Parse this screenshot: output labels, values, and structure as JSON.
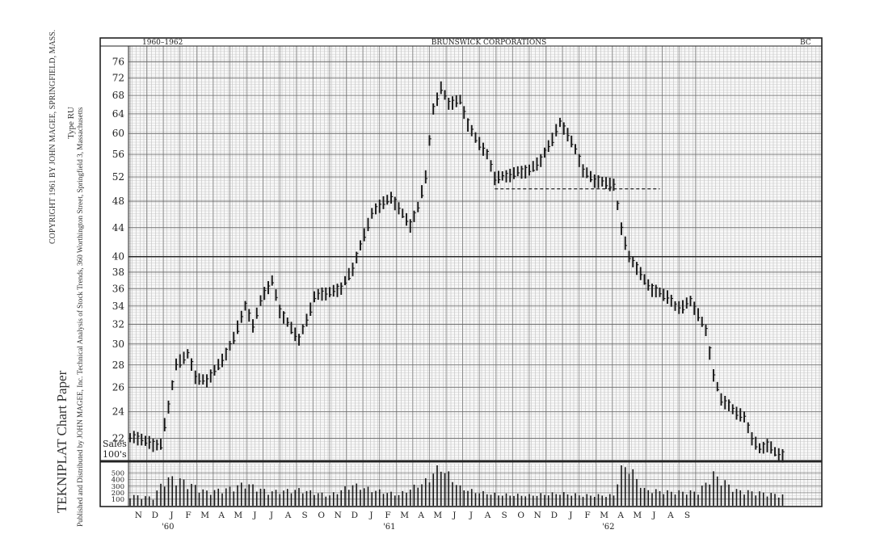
{
  "side_text": {
    "brand": "TEKNIPLAT  Chart  Paper",
    "publisher": "Published and Distributed by JOHN MAGEE, Inc. Technical Analysis of Stock Trends, 360 Worthington Street, Springfield 3, Massachusetts",
    "copyright": "COPYRIGHT 1961 BY JOHN MAGEE, SPRINGFIELD, MASS.",
    "type": "Type  RU"
  },
  "header": {
    "left": "1960–1962",
    "center": "BRUNSWICK   CORPORATIONS",
    "right": "BC"
  },
  "sales_label": [
    "Sales",
    "100's"
  ],
  "years": [
    "'60",
    "'61",
    "'62"
  ],
  "months": [
    "N",
    "D",
    "J",
    "F",
    "M",
    "A",
    "M",
    "J",
    "J",
    "A",
    "S",
    "O",
    "N",
    "D",
    "J",
    "F",
    "M",
    "A",
    "M",
    "J",
    "J",
    "A",
    "S",
    "O",
    "N",
    "D",
    "J",
    "F",
    "M",
    "A",
    "M",
    "J",
    "A",
    "S"
  ],
  "chart_data": {
    "type": "bar",
    "subtype": "weekly high-low-close bar chart on semi-logarithmic scale",
    "title": "BRUNSWICK   CORPORATIONS",
    "period": "1960–1962",
    "symbol": "BC",
    "y_scale": "log",
    "ylim": [
      20.5,
      80
    ],
    "price_ticks": [
      22,
      24,
      26,
      28,
      30,
      32,
      34,
      36,
      38,
      40,
      44,
      48,
      52,
      56,
      60,
      64,
      68,
      72,
      76
    ],
    "volume_ticks": [
      100,
      200,
      300,
      400,
      500
    ],
    "volume_label": "Sales 100's",
    "support_line": {
      "value": 50,
      "from_week": 95,
      "to_week": 138,
      "style": "dashed"
    },
    "price_anchors": [
      [
        0,
        22
      ],
      [
        3,
        22
      ],
      [
        6,
        21.5
      ],
      [
        8,
        21.5
      ],
      [
        10,
        24.5
      ],
      [
        12,
        28
      ],
      [
        15,
        29
      ],
      [
        17,
        27
      ],
      [
        20,
        26.5
      ],
      [
        24,
        28.5
      ],
      [
        27,
        30.5
      ],
      [
        30,
        34
      ],
      [
        32,
        32
      ],
      [
        34,
        34.5
      ],
      [
        37,
        37
      ],
      [
        39,
        33.5
      ],
      [
        42,
        31.5
      ],
      [
        44,
        30.5
      ],
      [
        46,
        32.5
      ],
      [
        48,
        35
      ],
      [
        51,
        35.5
      ],
      [
        55,
        36
      ],
      [
        58,
        38.5
      ],
      [
        61,
        43
      ],
      [
        63,
        46
      ],
      [
        66,
        48
      ],
      [
        68,
        48.5
      ],
      [
        71,
        46
      ],
      [
        73,
        44.5
      ],
      [
        75,
        47
      ],
      [
        77,
        52
      ],
      [
        79,
        65
      ],
      [
        81,
        70
      ],
      [
        83,
        66
      ],
      [
        86,
        67
      ],
      [
        88,
        62
      ],
      [
        90,
        59
      ],
      [
        93,
        56
      ],
      [
        95,
        52
      ],
      [
        98,
        52
      ],
      [
        101,
        53
      ],
      [
        104,
        53
      ],
      [
        107,
        55
      ],
      [
        110,
        59
      ],
      [
        112,
        62
      ],
      [
        114,
        60
      ],
      [
        116,
        57
      ],
      [
        118,
        53
      ],
      [
        121,
        51.5
      ],
      [
        124,
        51
      ],
      [
        126,
        50.5
      ],
      [
        128,
        44
      ],
      [
        130,
        40
      ],
      [
        132,
        38.5
      ],
      [
        134,
        37
      ],
      [
        136,
        36
      ],
      [
        138,
        35.5
      ],
      [
        140,
        35
      ],
      [
        142,
        34
      ],
      [
        144,
        34
      ],
      [
        146,
        34.5
      ],
      [
        148,
        33
      ],
      [
        150,
        31.5
      ],
      [
        152,
        27
      ],
      [
        154,
        25
      ],
      [
        156,
        24.5
      ],
      [
        158,
        24
      ],
      [
        160,
        23.5
      ],
      [
        162,
        22
      ],
      [
        164,
        21.3
      ],
      [
        166,
        21.5
      ],
      [
        168,
        21
      ],
      [
        170,
        20.8
      ]
    ],
    "volume_anchors": [
      [
        0,
        150
      ],
      [
        6,
        120
      ],
      [
        9,
        380
      ],
      [
        12,
        400
      ],
      [
        16,
        300
      ],
      [
        20,
        200
      ],
      [
        26,
        250
      ],
      [
        30,
        320
      ],
      [
        36,
        200
      ],
      [
        44,
        230
      ],
      [
        52,
        150
      ],
      [
        58,
        300
      ],
      [
        63,
        230
      ],
      [
        70,
        160
      ],
      [
        78,
        380
      ],
      [
        80,
        600
      ],
      [
        82,
        500
      ],
      [
        86,
        260
      ],
      [
        90,
        200
      ],
      [
        96,
        160
      ],
      [
        104,
        150
      ],
      [
        112,
        180
      ],
      [
        118,
        150
      ],
      [
        126,
        150
      ],
      [
        128,
        580
      ],
      [
        130,
        550
      ],
      [
        134,
        230
      ],
      [
        140,
        200
      ],
      [
        148,
        200
      ],
      [
        152,
        450
      ],
      [
        158,
        220
      ],
      [
        164,
        190
      ],
      [
        170,
        150
      ]
    ]
  }
}
